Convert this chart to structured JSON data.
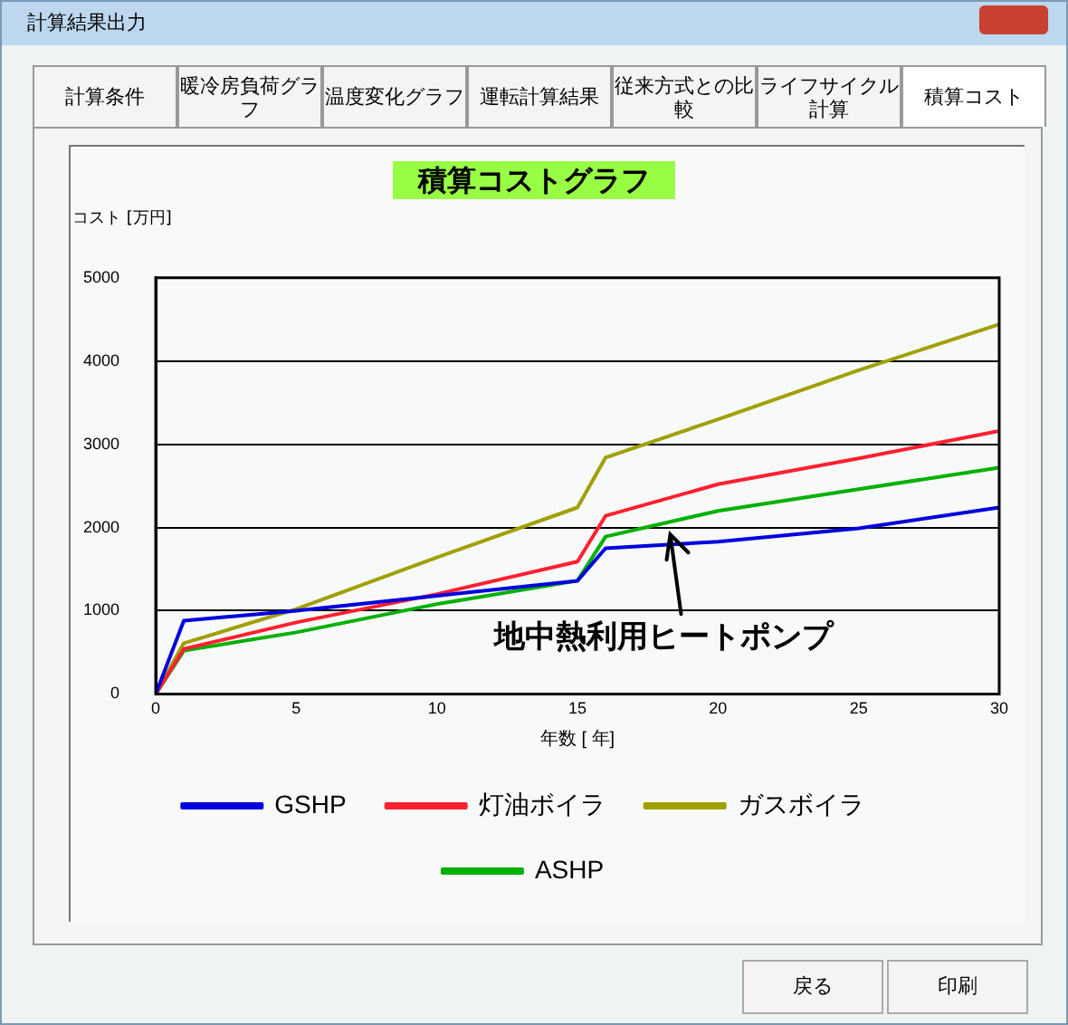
{
  "chart_data": {
    "type": "line",
    "title": "積算コストグラフ",
    "xlabel": "年数 [ 年]",
    "ylabel": "コスト [万円]",
    "x": [
      0,
      1,
      5,
      10,
      15,
      16,
      20,
      25,
      30
    ],
    "series": [
      {
        "name": "GSHP",
        "color": "#0000dd",
        "values": [
          0,
          880,
          1000,
          1180,
          1360,
          1750,
          1830,
          1990,
          2240
        ]
      },
      {
        "name": "灯油ボイラ",
        "color": "#ff2030",
        "values": [
          0,
          540,
          860,
          1200,
          1590,
          2140,
          2520,
          2830,
          3160
        ]
      },
      {
        "name": "ガスボイラ",
        "color": "#a0a000",
        "values": [
          0,
          610,
          1020,
          1640,
          2240,
          2840,
          3300,
          3890,
          4440
        ]
      },
      {
        "name": "ASHP",
        "color": "#00b000",
        "values": [
          0,
          520,
          740,
          1080,
          1360,
          1890,
          2200,
          2460,
          2720
        ]
      }
    ],
    "xlim": [
      0,
      30
    ],
    "xticks": [
      0,
      5,
      10,
      15,
      20,
      25,
      30
    ],
    "ylim": [
      0,
      5000
    ],
    "yticks": [
      0,
      1000,
      2000,
      3000,
      4000,
      5000
    ],
    "grid": "y",
    "legend": "bottom",
    "marker": "none",
    "line_style": "solid",
    "annotations": [
      "計算結果出力",
      "計算条件",
      "暖冷房負荷グラフ",
      "温度変化グラフ",
      "運転計算結果",
      "従来方式との比較",
      "ライフサイクル計算",
      "積算コスト",
      "戻る",
      "印刷",
      {
        "text": "地中熱利用ヒートポンプ",
        "x": 18.3,
        "y": 1960
      }
    ]
  }
}
